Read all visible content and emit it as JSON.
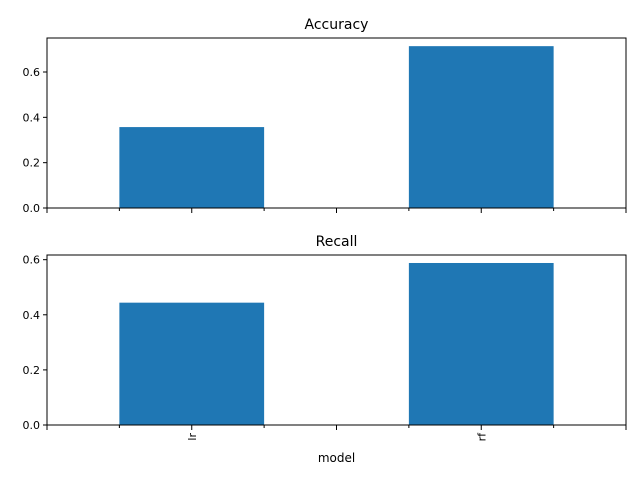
{
  "chart_data": {
    "type": "bar",
    "layout": "vertical-subplots",
    "shared_x": true,
    "xlabel": "model",
    "categories": [
      "lr",
      "rf"
    ],
    "bar_color": "#1f77b4",
    "grid": false,
    "legend": "none",
    "subplots": [
      {
        "title": "Accuracy",
        "values": [
          0.357,
          0.714
        ],
        "ylim": [
          0,
          0.75
        ],
        "yticks": [
          0.0,
          0.2,
          0.4,
          0.6
        ],
        "ytick_labels": [
          "0.0",
          "0.2",
          "0.4",
          "0.6"
        ]
      },
      {
        "title": "Recall",
        "values": [
          0.444,
          0.588
        ],
        "ylim": [
          0,
          0.617
        ],
        "yticks": [
          0.0,
          0.2,
          0.4,
          0.6
        ],
        "ytick_labels": [
          "0.0",
          "0.2",
          "0.4",
          "0.6"
        ]
      }
    ]
  }
}
